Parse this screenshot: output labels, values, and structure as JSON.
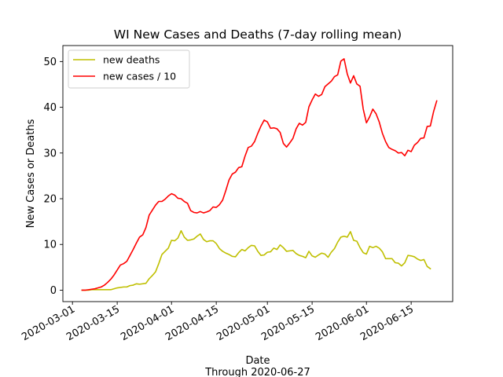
{
  "chart_data": {
    "type": "line",
    "title": "WI New Cases and Deaths (7-day rolling mean)",
    "xlabel": "Date",
    "xlabel_sub": "Through 2020-06-27",
    "ylabel": "New Cases or Deaths",
    "xlim": [
      "2020-02-27",
      "2020-06-28"
    ],
    "ylim": [
      -2.5,
      53.5
    ],
    "x_ticks": [
      "2020-03-01",
      "2020-03-15",
      "2020-04-01",
      "2020-04-15",
      "2020-05-01",
      "2020-05-15",
      "2020-06-01",
      "2020-06-15"
    ],
    "y_ticks": [
      0,
      10,
      20,
      30,
      40,
      50
    ],
    "grid": false,
    "legend_position": "upper-left",
    "series": [
      {
        "name": "new deaths",
        "color": "#bfbf00",
        "points": [
          [
            "2020-03-04",
            0
          ],
          [
            "2020-03-06",
            0
          ],
          [
            "2020-03-07",
            0.1
          ],
          [
            "2020-03-09",
            0.1
          ],
          [
            "2020-03-13",
            0.1
          ],
          [
            "2020-03-15",
            0.5
          ],
          [
            "2020-03-17",
            0.7
          ],
          [
            "2020-03-18",
            0.7
          ],
          [
            "2020-03-19",
            1.0
          ],
          [
            "2020-03-20",
            1.1
          ],
          [
            "2020-03-21",
            1.4
          ],
          [
            "2020-03-22",
            1.3
          ],
          [
            "2020-03-24",
            1.5
          ],
          [
            "2020-03-25",
            2.5
          ],
          [
            "2020-03-26",
            3.2
          ],
          [
            "2020-03-27",
            4.0
          ],
          [
            "2020-03-28",
            5.8
          ],
          [
            "2020-03-29",
            7.8
          ],
          [
            "2020-03-30",
            8.5
          ],
          [
            "2020-03-31",
            9.2
          ],
          [
            "2020-04-01",
            10.9
          ],
          [
            "2020-04-02",
            10.8
          ],
          [
            "2020-04-03",
            11.4
          ],
          [
            "2020-04-04",
            13.0
          ],
          [
            "2020-04-05",
            11.6
          ],
          [
            "2020-04-06",
            10.9
          ],
          [
            "2020-04-07",
            11.0
          ],
          [
            "2020-04-08",
            11.2
          ],
          [
            "2020-04-09",
            11.8
          ],
          [
            "2020-04-10",
            12.3
          ],
          [
            "2020-04-11",
            11.1
          ],
          [
            "2020-04-12",
            10.6
          ],
          [
            "2020-04-13",
            10.8
          ],
          [
            "2020-04-14",
            10.8
          ],
          [
            "2020-04-15",
            10.2
          ],
          [
            "2020-04-16",
            9.1
          ],
          [
            "2020-04-17",
            8.5
          ],
          [
            "2020-04-18",
            8.1
          ],
          [
            "2020-04-19",
            7.8
          ],
          [
            "2020-04-20",
            7.4
          ],
          [
            "2020-04-21",
            7.3
          ],
          [
            "2020-04-22",
            8.2
          ],
          [
            "2020-04-23",
            8.9
          ],
          [
            "2020-04-24",
            8.6
          ],
          [
            "2020-04-25",
            9.3
          ],
          [
            "2020-04-26",
            9.8
          ],
          [
            "2020-04-27",
            9.7
          ],
          [
            "2020-04-28",
            8.5
          ],
          [
            "2020-04-29",
            7.6
          ],
          [
            "2020-04-30",
            7.7
          ],
          [
            "2020-05-01",
            8.3
          ],
          [
            "2020-05-02",
            8.4
          ],
          [
            "2020-05-03",
            9.2
          ],
          [
            "2020-05-04",
            8.9
          ],
          [
            "2020-05-05",
            9.9
          ],
          [
            "2020-05-06",
            9.3
          ],
          [
            "2020-05-07",
            8.5
          ],
          [
            "2020-05-08",
            8.6
          ],
          [
            "2020-05-09",
            8.7
          ],
          [
            "2020-05-10",
            8.0
          ],
          [
            "2020-05-11",
            7.6
          ],
          [
            "2020-05-12",
            7.4
          ],
          [
            "2020-05-13",
            7.1
          ],
          [
            "2020-05-14",
            8.5
          ],
          [
            "2020-05-15",
            7.5
          ],
          [
            "2020-05-16",
            7.2
          ],
          [
            "2020-05-17",
            7.7
          ],
          [
            "2020-05-18",
            8.1
          ],
          [
            "2020-05-19",
            7.9
          ],
          [
            "2020-05-20",
            7.2
          ],
          [
            "2020-05-21",
            8.3
          ],
          [
            "2020-05-22",
            9.1
          ],
          [
            "2020-05-23",
            10.5
          ],
          [
            "2020-05-24",
            11.6
          ],
          [
            "2020-05-25",
            11.8
          ],
          [
            "2020-05-26",
            11.6
          ],
          [
            "2020-05-27",
            12.8
          ],
          [
            "2020-05-28",
            10.9
          ],
          [
            "2020-05-29",
            10.7
          ],
          [
            "2020-05-30",
            9.3
          ],
          [
            "2020-05-31",
            8.2
          ],
          [
            "2020-06-01",
            7.9
          ],
          [
            "2020-06-02",
            9.6
          ],
          [
            "2020-06-03",
            9.3
          ],
          [
            "2020-06-04",
            9.6
          ],
          [
            "2020-06-05",
            9.2
          ],
          [
            "2020-06-06",
            8.4
          ],
          [
            "2020-06-07",
            6.9
          ],
          [
            "2020-06-08",
            6.9
          ],
          [
            "2020-06-09",
            6.9
          ],
          [
            "2020-06-10",
            6.0
          ],
          [
            "2020-06-11",
            5.9
          ],
          [
            "2020-06-12",
            5.3
          ],
          [
            "2020-06-13",
            6.0
          ],
          [
            "2020-06-14",
            7.6
          ],
          [
            "2020-06-15",
            7.5
          ],
          [
            "2020-06-16",
            7.3
          ],
          [
            "2020-06-17",
            6.8
          ],
          [
            "2020-06-18",
            6.5
          ],
          [
            "2020-06-19",
            6.7
          ],
          [
            "2020-06-20",
            5.2
          ],
          [
            "2020-06-21",
            4.7
          ]
        ]
      },
      {
        "name": "new cases / 10",
        "color": "#ff0000",
        "points": [
          [
            "2020-03-04",
            0
          ],
          [
            "2020-03-05",
            0
          ],
          [
            "2020-03-06",
            0.1
          ],
          [
            "2020-03-07",
            0.2
          ],
          [
            "2020-03-08",
            0.3
          ],
          [
            "2020-03-09",
            0.5
          ],
          [
            "2020-03-10",
            0.7
          ],
          [
            "2020-03-11",
            1.1
          ],
          [
            "2020-03-12",
            1.7
          ],
          [
            "2020-03-13",
            2.4
          ],
          [
            "2020-03-14",
            3.3
          ],
          [
            "2020-03-15",
            4.4
          ],
          [
            "2020-03-16",
            5.5
          ],
          [
            "2020-03-17",
            5.8
          ],
          [
            "2020-03-18",
            6.3
          ],
          [
            "2020-03-19",
            7.6
          ],
          [
            "2020-03-20",
            8.9
          ],
          [
            "2020-03-21",
            10.3
          ],
          [
            "2020-03-22",
            11.6
          ],
          [
            "2020-03-23",
            12.1
          ],
          [
            "2020-03-24",
            13.7
          ],
          [
            "2020-03-25",
            16.4
          ],
          [
            "2020-03-26",
            17.5
          ],
          [
            "2020-03-27",
            18.6
          ],
          [
            "2020-03-28",
            19.4
          ],
          [
            "2020-03-29",
            19.4
          ],
          [
            "2020-03-30",
            19.9
          ],
          [
            "2020-03-31",
            20.6
          ],
          [
            "2020-04-01",
            21.1
          ],
          [
            "2020-04-02",
            20.8
          ],
          [
            "2020-04-03",
            20.1
          ],
          [
            "2020-04-04",
            20.0
          ],
          [
            "2020-04-05",
            19.4
          ],
          [
            "2020-04-06",
            19.0
          ],
          [
            "2020-04-07",
            17.4
          ],
          [
            "2020-04-08",
            17.0
          ],
          [
            "2020-04-09",
            16.9
          ],
          [
            "2020-04-10",
            17.2
          ],
          [
            "2020-04-11",
            16.9
          ],
          [
            "2020-04-12",
            17.1
          ],
          [
            "2020-04-13",
            17.4
          ],
          [
            "2020-04-14",
            18.2
          ],
          [
            "2020-04-15",
            18.1
          ],
          [
            "2020-04-16",
            18.7
          ],
          [
            "2020-04-17",
            19.7
          ],
          [
            "2020-04-18",
            21.8
          ],
          [
            "2020-04-19",
            24.1
          ],
          [
            "2020-04-20",
            25.4
          ],
          [
            "2020-04-21",
            25.8
          ],
          [
            "2020-04-22",
            26.8
          ],
          [
            "2020-04-23",
            27.0
          ],
          [
            "2020-04-24",
            29.3
          ],
          [
            "2020-04-25",
            31.2
          ],
          [
            "2020-04-26",
            31.5
          ],
          [
            "2020-04-27",
            32.5
          ],
          [
            "2020-04-28",
            34.3
          ],
          [
            "2020-04-29",
            35.9
          ],
          [
            "2020-04-30",
            37.2
          ],
          [
            "2020-05-01",
            36.8
          ],
          [
            "2020-05-02",
            35.4
          ],
          [
            "2020-05-03",
            35.5
          ],
          [
            "2020-05-04",
            35.3
          ],
          [
            "2020-05-05",
            34.5
          ],
          [
            "2020-05-06",
            32.1
          ],
          [
            "2020-05-07",
            31.3
          ],
          [
            "2020-05-08",
            32.2
          ],
          [
            "2020-05-09",
            33.2
          ],
          [
            "2020-05-10",
            35.3
          ],
          [
            "2020-05-11",
            36.5
          ],
          [
            "2020-05-12",
            36.1
          ],
          [
            "2020-05-13",
            36.7
          ],
          [
            "2020-05-14",
            40.1
          ],
          [
            "2020-05-15",
            41.6
          ],
          [
            "2020-05-16",
            42.9
          ],
          [
            "2020-05-17",
            42.4
          ],
          [
            "2020-05-18",
            42.8
          ],
          [
            "2020-05-19",
            44.5
          ],
          [
            "2020-05-20",
            45.1
          ],
          [
            "2020-05-21",
            45.7
          ],
          [
            "2020-05-22",
            46.7
          ],
          [
            "2020-05-23",
            47.1
          ],
          [
            "2020-05-24",
            50.1
          ],
          [
            "2020-05-25",
            50.6
          ],
          [
            "2020-05-26",
            47.3
          ],
          [
            "2020-05-27",
            45.3
          ],
          [
            "2020-05-28",
            46.9
          ],
          [
            "2020-05-29",
            45.1
          ],
          [
            "2020-05-30",
            44.6
          ],
          [
            "2020-05-31",
            39.6
          ],
          [
            "2020-06-01",
            36.6
          ],
          [
            "2020-06-02",
            37.9
          ],
          [
            "2020-06-03",
            39.6
          ],
          [
            "2020-06-04",
            38.6
          ],
          [
            "2020-06-05",
            36.8
          ],
          [
            "2020-06-06",
            34.3
          ],
          [
            "2020-06-07",
            32.5
          ],
          [
            "2020-06-08",
            31.2
          ],
          [
            "2020-06-09",
            30.8
          ],
          [
            "2020-06-10",
            30.5
          ],
          [
            "2020-06-11",
            30.0
          ],
          [
            "2020-06-12",
            30.1
          ],
          [
            "2020-06-13",
            29.4
          ],
          [
            "2020-06-14",
            30.6
          ],
          [
            "2020-06-15",
            30.3
          ],
          [
            "2020-06-16",
            31.7
          ],
          [
            "2020-06-17",
            32.3
          ],
          [
            "2020-06-18",
            33.2
          ],
          [
            "2020-06-19",
            33.3
          ],
          [
            "2020-06-20",
            35.8
          ],
          [
            "2020-06-21",
            35.9
          ],
          [
            "2020-06-22",
            39.0
          ],
          [
            "2020-06-23",
            41.4
          ]
        ]
      }
    ]
  }
}
